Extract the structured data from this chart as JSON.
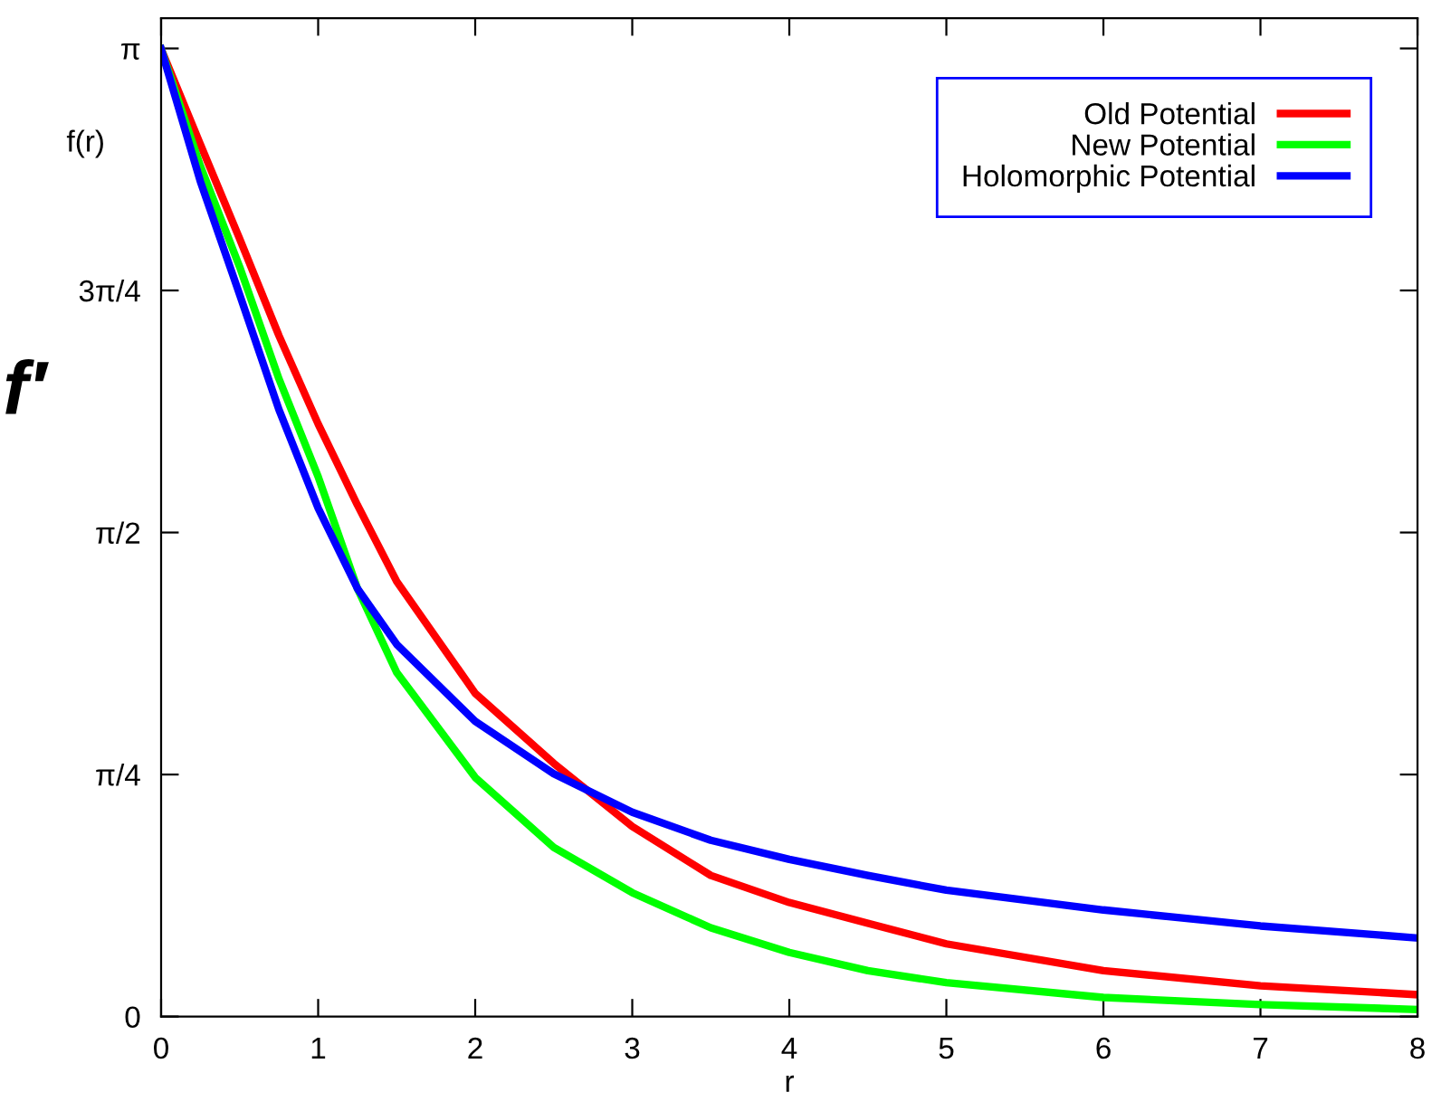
{
  "chart_data": {
    "type": "line",
    "xlabel": "r",
    "ylabel": "f(r)",
    "annotations": [
      "f′"
    ],
    "x": [
      0,
      0.25,
      0.5,
      0.75,
      1,
      1.25,
      1.5,
      2,
      2.5,
      3,
      3.5,
      4,
      4.5,
      5,
      6,
      7,
      8
    ],
    "series": [
      {
        "name": "Old Potential",
        "color": "#ff0000",
        "values": [
          3.14,
          2.83,
          2.524,
          2.21,
          1.923,
          1.66,
          1.412,
          1.049,
          0.822,
          0.617,
          0.458,
          0.37,
          0.303,
          0.236,
          0.149,
          0.1,
          0.071
        ]
      },
      {
        "name": "New Potential",
        "color": "#00ff00",
        "values": [
          3.14,
          2.76,
          2.433,
          2.07,
          1.752,
          1.389,
          1.117,
          0.776,
          0.549,
          0.402,
          0.288,
          0.208,
          0.149,
          0.11,
          0.062,
          0.039,
          0.023
        ]
      },
      {
        "name": "Holomorphic Potential",
        "color": "#0000ff",
        "values": [
          3.14,
          2.71,
          2.343,
          1.97,
          1.65,
          1.389,
          1.208,
          0.958,
          0.788,
          0.663,
          0.572,
          0.51,
          0.458,
          0.41,
          0.346,
          0.294,
          0.255
        ]
      }
    ],
    "xlim": [
      0,
      8
    ],
    "ylim": [
      0,
      3.24
    ],
    "xticks": [
      0,
      1,
      2,
      3,
      4,
      5,
      6,
      7,
      8
    ],
    "yticks": [
      0,
      {
        "value": 0.7854,
        "label": "π/4"
      },
      {
        "value": 1.5708,
        "label": "π/2"
      },
      {
        "value": 2.3562,
        "label": "3π/4"
      },
      {
        "value": 3.1416,
        "label": "π"
      }
    ],
    "grid": false,
    "legend": "top right",
    "marker": "none",
    "line_style": "solid"
  }
}
